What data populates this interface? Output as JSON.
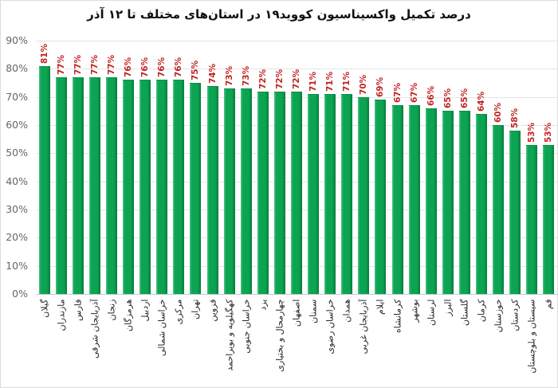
{
  "title": "درصد تکمیل واکسیناسیون کووید۱۹ در استان‌های مختلف تا ۱۲ آذر",
  "chart_data": {
    "type": "bar",
    "title": "درصد تکمیل واکسیناسیون کووید۱۹ در استان‌های مختلف تا ۱۲ آذر",
    "categories": [
      "گیلان",
      "مازندران",
      "فارس",
      "آذربایجان شرقی",
      "زنجان",
      "هرمزگان",
      "اردبیل",
      "خراسان شمالی",
      "مرکزی",
      "تهران",
      "قزوین",
      "کهگیلویه و بویراحمد",
      "خراسان جنوبی",
      "یزد",
      "چهارمحال و بختیاری",
      "اصفهان",
      "سمنان",
      "خراسان رضوی",
      "همدان",
      "آذربایجان غربی",
      "ایلام",
      "کرمانشاه",
      "بوشهر",
      "لرستان",
      "البرز",
      "گلستان",
      "کرمان",
      "خوزستان",
      "کردستان",
      "سیستان و بلوچستان",
      "قم"
    ],
    "values": [
      81,
      77,
      77,
      77,
      77,
      76,
      76,
      76,
      76,
      75,
      74,
      73,
      73,
      72,
      72,
      72,
      71,
      71,
      71,
      70,
      69,
      67,
      67,
      66,
      65,
      65,
      64,
      60,
      58,
      53,
      53
    ],
    "value_label_suffix": "%",
    "xlabel": "",
    "ylabel": "",
    "ylim": [
      0,
      90
    ],
    "ytick_step": 10,
    "ytick_labels": [
      "0%",
      "10%",
      "20%",
      "30%",
      "40%",
      "50%",
      "60%",
      "70%",
      "80%",
      "90%"
    ],
    "grid": true,
    "legend": false,
    "bar_color": "#0ca452",
    "bar_highlight_color": "#4dc687",
    "bar_shadow_color": "#077c3c",
    "value_label_color": "#c32222",
    "axis_label_color": "#666666",
    "category_label_color": "#262626",
    "gridline_color": "#e4e4e4"
  }
}
